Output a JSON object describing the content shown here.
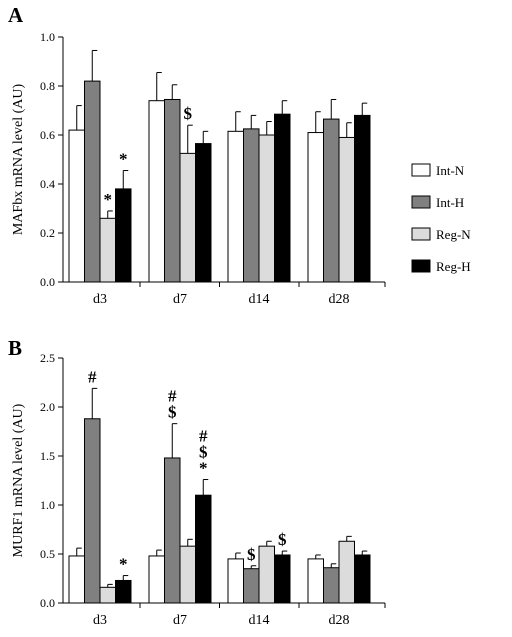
{
  "chart_data": [
    {
      "panel": "A",
      "type": "bar",
      "ylabel": "MAFbx mRNA level (AU)",
      "ylim": [
        0,
        1.0
      ],
      "yticks": [
        "0.0",
        "0.2",
        "0.4",
        "0.6",
        "0.8",
        "1.0"
      ],
      "categories": [
        "d3",
        "d7",
        "d14",
        "d28"
      ],
      "series": [
        {
          "name": "Int-N",
          "values": [
            0.62,
            0.74,
            0.615,
            0.61
          ],
          "errors": [
            0.1,
            0.115,
            0.08,
            0.085
          ]
        },
        {
          "name": "Int-H",
          "values": [
            0.82,
            0.745,
            0.625,
            0.665
          ],
          "errors": [
            0.125,
            0.06,
            0.055,
            0.08
          ]
        },
        {
          "name": "Reg-N",
          "values": [
            0.26,
            0.525,
            0.6,
            0.59
          ],
          "errors": [
            0.03,
            0.115,
            0.055,
            0.06
          ]
        },
        {
          "name": "Reg-H",
          "values": [
            0.38,
            0.565,
            0.685,
            0.68
          ],
          "errors": [
            0.075,
            0.05,
            0.055,
            0.05
          ]
        }
      ],
      "annotations": [
        {
          "category": 0,
          "series": 2,
          "text": "*"
        },
        {
          "category": 0,
          "series": 3,
          "text": "*"
        },
        {
          "category": 1,
          "series": 2,
          "text": "$"
        }
      ]
    },
    {
      "panel": "B",
      "type": "bar",
      "ylabel": "MURF1 mRNA level (AU)",
      "ylim": [
        0,
        2.5
      ],
      "yticks": [
        "0.0",
        "0.5",
        "1.0",
        "1.5",
        "2.0",
        "2.5"
      ],
      "categories": [
        "d3",
        "d7",
        "d14",
        "d28"
      ],
      "series": [
        {
          "name": "Int-N",
          "values": [
            0.48,
            0.48,
            0.45,
            0.45
          ],
          "errors": [
            0.08,
            0.06,
            0.06,
            0.04
          ]
        },
        {
          "name": "Int-H",
          "values": [
            1.88,
            1.48,
            0.35,
            0.36
          ],
          "errors": [
            0.31,
            0.35,
            0.03,
            0.04
          ]
        },
        {
          "name": "Reg-N",
          "values": [
            0.16,
            0.58,
            0.58,
            0.63
          ],
          "errors": [
            0.03,
            0.07,
            0.05,
            0.05
          ]
        },
        {
          "name": "Reg-H",
          "values": [
            0.23,
            1.1,
            0.49,
            0.49
          ],
          "errors": [
            0.05,
            0.16,
            0.04,
            0.04
          ]
        }
      ],
      "annotations": [
        {
          "category": 0,
          "series": 1,
          "text": "#"
        },
        {
          "category": 0,
          "series": 3,
          "text": "*"
        },
        {
          "category": 1,
          "series": 1,
          "text": "#\n$"
        },
        {
          "category": 1,
          "series": 3,
          "text": "#\n$\n*"
        },
        {
          "category": 2,
          "series": 1,
          "text": "$"
        },
        {
          "category": 2,
          "series": 3,
          "text": "$"
        }
      ]
    }
  ],
  "legend": {
    "items": [
      {
        "name": "Int-N",
        "color": "#ffffff"
      },
      {
        "name": "Int-H",
        "color": "#808080"
      },
      {
        "name": "Reg-N",
        "color": "#dcdcdc"
      },
      {
        "name": "Reg-H",
        "color": "#000000"
      }
    ]
  },
  "colors": {
    "Int-N": "#ffffff",
    "Int-H": "#808080",
    "Reg-N": "#dcdcdc",
    "Reg-H": "#000000"
  }
}
